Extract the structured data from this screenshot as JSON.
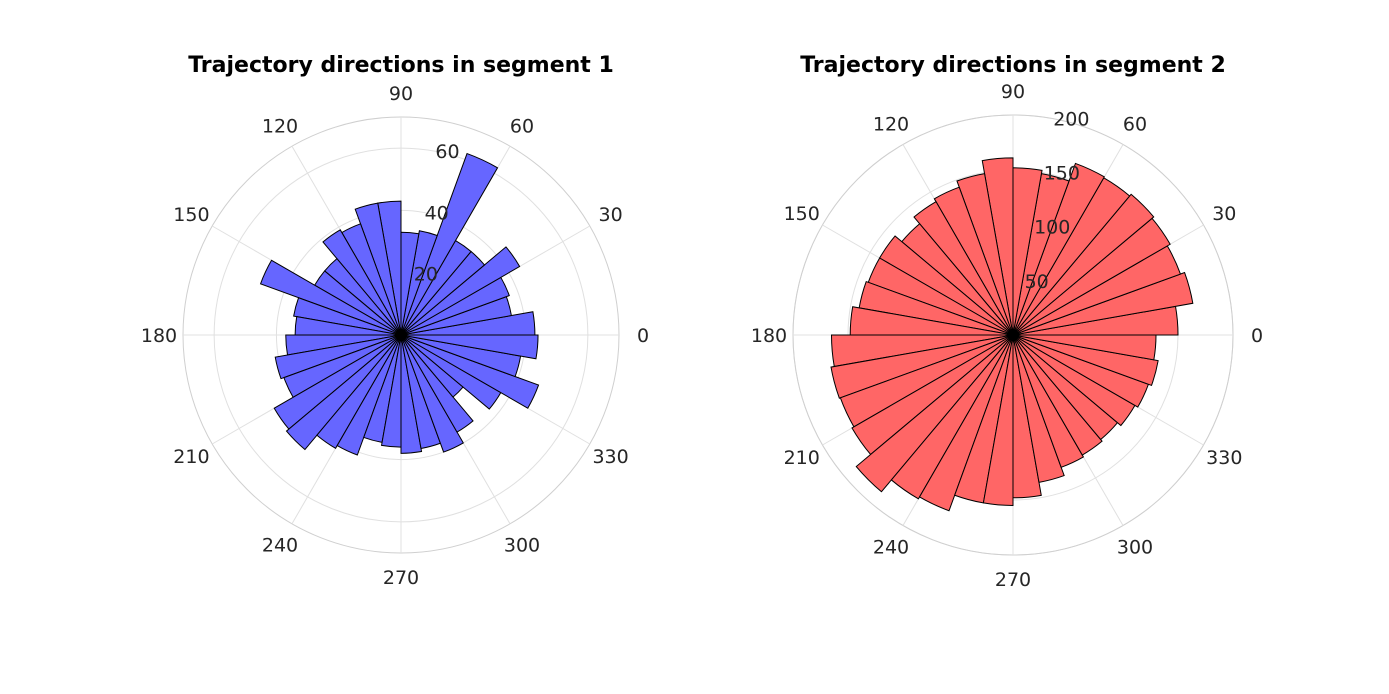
{
  "chart_data": [
    {
      "type": "polar-histogram",
      "title": "Trajectory directions in segment 1",
      "color": "#6666ff",
      "bin_width_deg": 10,
      "bin_starts_deg": [
        0,
        10,
        20,
        30,
        40,
        50,
        60,
        70,
        80,
        90,
        100,
        110,
        120,
        130,
        140,
        150,
        160,
        170,
        180,
        190,
        200,
        210,
        220,
        230,
        240,
        250,
        260,
        270,
        280,
        290,
        300,
        310,
        320,
        330,
        340,
        350
      ],
      "values": [
        43,
        36,
        37,
        44,
        35,
        35,
        62,
        34,
        33,
        43,
        43,
        38,
        39,
        32,
        32,
        48,
        35,
        34,
        37,
        41,
        40,
        47,
        48,
        42,
        41,
        35,
        36,
        38,
        37,
        40,
        36,
        26,
        37,
        47,
        39,
        44
      ],
      "rlim": [
        0,
        70
      ],
      "rticks": [
        20,
        40,
        60
      ],
      "rtick_labels": [
        "20",
        "40",
        "60"
      ],
      "theta_ticks": [
        0,
        30,
        60,
        90,
        120,
        150,
        180,
        210,
        240,
        270,
        300,
        330
      ],
      "theta_labels": [
        "0",
        "30",
        "60",
        "90",
        "120",
        "150",
        "180",
        "210",
        "240",
        "270",
        "300",
        "330"
      ],
      "grid": true
    },
    {
      "type": "polar-histogram",
      "title": "Trajectory directions in segment 2",
      "color": "#ff6666",
      "bin_width_deg": 10,
      "bin_starts_deg": [
        0,
        10,
        20,
        30,
        40,
        50,
        60,
        70,
        80,
        90,
        100,
        110,
        120,
        130,
        140,
        150,
        160,
        170,
        180,
        190,
        200,
        210,
        220,
        230,
        240,
        250,
        260,
        270,
        280,
        290,
        300,
        310,
        320,
        330,
        340,
        350
      ],
      "values": [
        150,
        166,
        162,
        165,
        167,
        165,
        166,
        149,
        152,
        161,
        149,
        143,
        140,
        132,
        140,
        140,
        142,
        148,
        165,
        168,
        167,
        169,
        186,
        172,
        170,
        155,
        155,
        148,
        136,
        128,
        126,
        124,
        128,
        131,
        134,
        130
      ],
      "rlim": [
        0,
        200
      ],
      "rticks": [
        50,
        100,
        150,
        200
      ],
      "rtick_labels": [
        "50",
        "100",
        "150",
        "200"
      ],
      "theta_ticks": [
        0,
        30,
        60,
        90,
        120,
        150,
        180,
        210,
        240,
        270,
        300,
        330
      ],
      "theta_labels": [
        "0",
        "30",
        "60",
        "90",
        "120",
        "150",
        "180",
        "210",
        "240",
        "270",
        "300",
        "330"
      ],
      "grid": true
    }
  ]
}
